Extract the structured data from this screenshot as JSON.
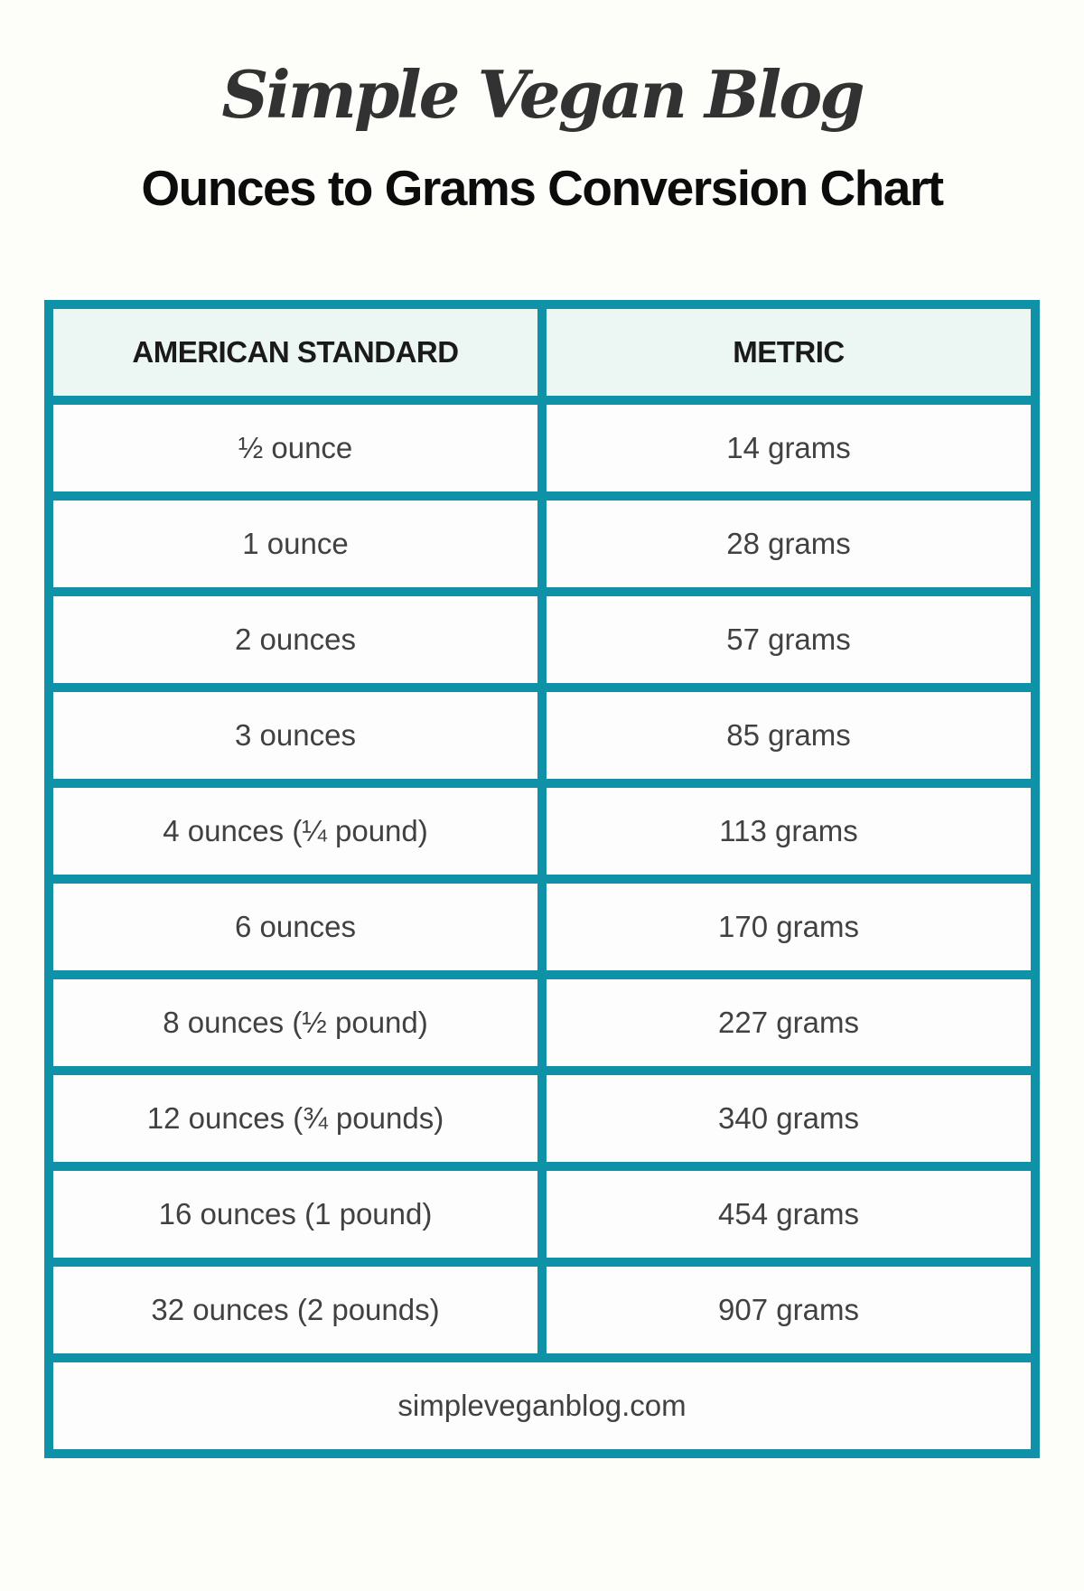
{
  "logo": {
    "text": "Simple Vegan Blog"
  },
  "title": "Ounces to Grams Conversion Chart",
  "table": {
    "headers": [
      "AMERICAN STANDARD",
      "METRIC"
    ],
    "rows": [
      [
        "½ ounce",
        "14 grams"
      ],
      [
        "1 ounce",
        "28 grams"
      ],
      [
        "2 ounces",
        "57 grams"
      ],
      [
        "3 ounces",
        "85 grams"
      ],
      [
        "4 ounces (¼ pound)",
        "113 grams"
      ],
      [
        "6 ounces",
        "170 grams"
      ],
      [
        "8 ounces (½ pound)",
        "227 grams"
      ],
      [
        "12 ounces (¾ pounds)",
        "340 grams"
      ],
      [
        "16 ounces (1 pound)",
        "454 grams"
      ],
      [
        "32 ounces (2 pounds)",
        "907 grams"
      ]
    ],
    "footer": "simpleveganblog.com"
  },
  "colors": {
    "accent_teal": "#0f92a7",
    "header_bg": "#ecf6f3",
    "row_bg": "#fdfdfd",
    "page_bg": "#fdfdfa",
    "data_text": "#414141",
    "header_text": "#1a1a1a",
    "title_text": "#0c0c0c",
    "logo_text": "#323232"
  },
  "chart_data": {
    "type": "table",
    "title": "Ounces to Grams Conversion Chart",
    "columns": [
      "AMERICAN STANDARD",
      "METRIC"
    ],
    "rows": [
      {
        "american_standard": "½ ounce",
        "metric": "14 grams",
        "ounces": 0.5,
        "grams": 14
      },
      {
        "american_standard": "1 ounce",
        "metric": "28 grams",
        "ounces": 1,
        "grams": 28
      },
      {
        "american_standard": "2 ounces",
        "metric": "57 grams",
        "ounces": 2,
        "grams": 57
      },
      {
        "american_standard": "3 ounces",
        "metric": "85 grams",
        "ounces": 3,
        "grams": 85
      },
      {
        "american_standard": "4 ounces (¼ pound)",
        "metric": "113 grams",
        "ounces": 4,
        "grams": 113
      },
      {
        "american_standard": "6 ounces",
        "metric": "170 grams",
        "ounces": 6,
        "grams": 170
      },
      {
        "american_standard": "8 ounces (½ pound)",
        "metric": "227 grams",
        "ounces": 8,
        "grams": 227
      },
      {
        "american_standard": "12 ounces (¾ pounds)",
        "metric": "340 grams",
        "ounces": 12,
        "grams": 340
      },
      {
        "american_standard": "16 ounces (1 pound)",
        "metric": "454 grams",
        "ounces": 16,
        "grams": 454
      },
      {
        "american_standard": "32 ounces (2 pounds)",
        "metric": "907 grams",
        "ounces": 32,
        "grams": 907
      }
    ],
    "footer": "simpleveganblog.com"
  }
}
